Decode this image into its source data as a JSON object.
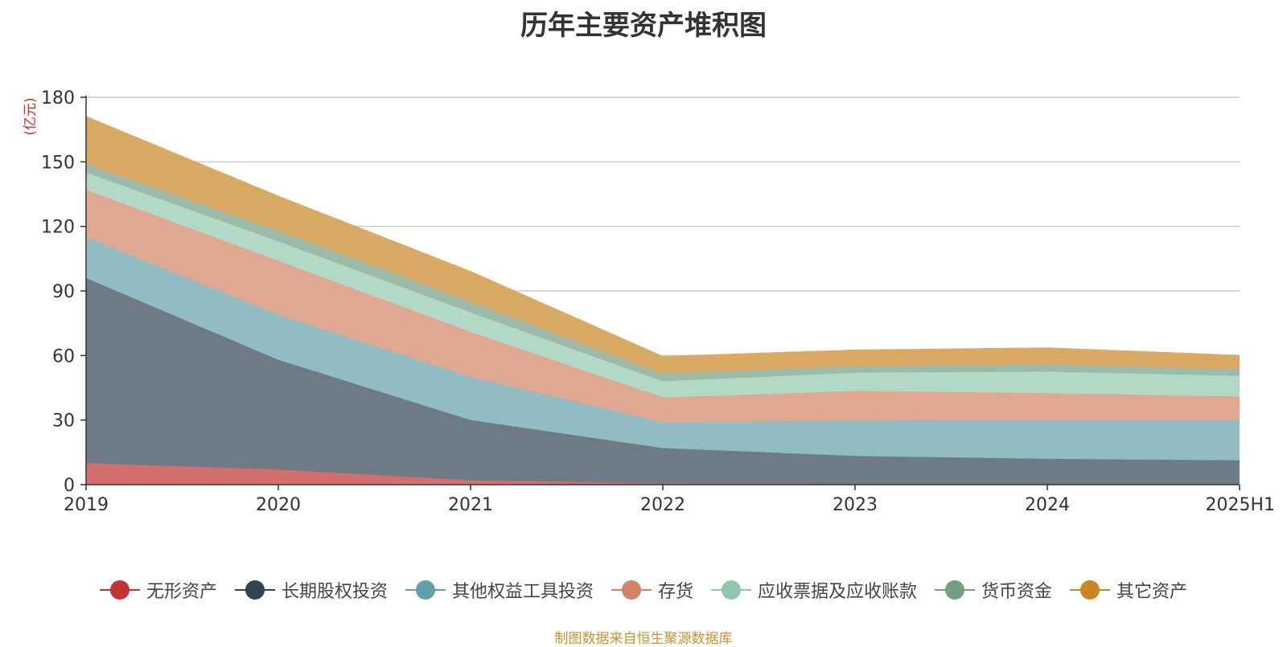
{
  "chart_data": {
    "type": "area",
    "stacked": true,
    "title": "历年主要资产堆积图",
    "ylabel": "(亿元)",
    "ylim": [
      0,
      180
    ],
    "yticks": [
      0,
      30,
      60,
      90,
      120,
      150,
      180
    ],
    "grid": true,
    "legend_position": "bottom",
    "categories": [
      "2019",
      "2020",
      "2021",
      "2022",
      "2023",
      "2024",
      "2025H1"
    ],
    "series": [
      {
        "name": "无形资产",
        "color": "#c23531",
        "area_color": "#d36f6c",
        "values": [
          10,
          7,
          2,
          0.5,
          0.3,
          0.3,
          0.3
        ]
      },
      {
        "name": "长期股权投资",
        "color": "#2f4554",
        "area_color": "#6e7b87",
        "values": [
          86,
          51,
          28,
          16.5,
          13,
          11.7,
          11
        ]
      },
      {
        "name": "其他权益工具投资",
        "color": "#61a0a8",
        "area_color": "#90bcc2",
        "values": [
          19,
          21,
          20,
          12,
          16.5,
          18,
          18.7
        ]
      },
      {
        "name": "存货",
        "color": "#d48265",
        "area_color": "#e0a793",
        "values": [
          22,
          25,
          21,
          11.5,
          13.7,
          12.5,
          11
        ]
      },
      {
        "name": "应收票据及应收账款",
        "color": "#91c7ae",
        "area_color": "#b2d8c6",
        "values": [
          8,
          9,
          9,
          7.5,
          8.5,
          10,
          9.5
        ]
      },
      {
        "name": "货币资金",
        "color": "#749f83",
        "area_color": "#9db9a8",
        "values": [
          4,
          5,
          5,
          3.5,
          3,
          3.5,
          3
        ]
      },
      {
        "name": "其它资产",
        "color": "#ca8622",
        "area_color": "#d9a963",
        "values": [
          22,
          16,
          14,
          8,
          7.5,
          7.5,
          6.5
        ]
      }
    ]
  },
  "source_note": "制图数据来自恒生聚源数据库"
}
